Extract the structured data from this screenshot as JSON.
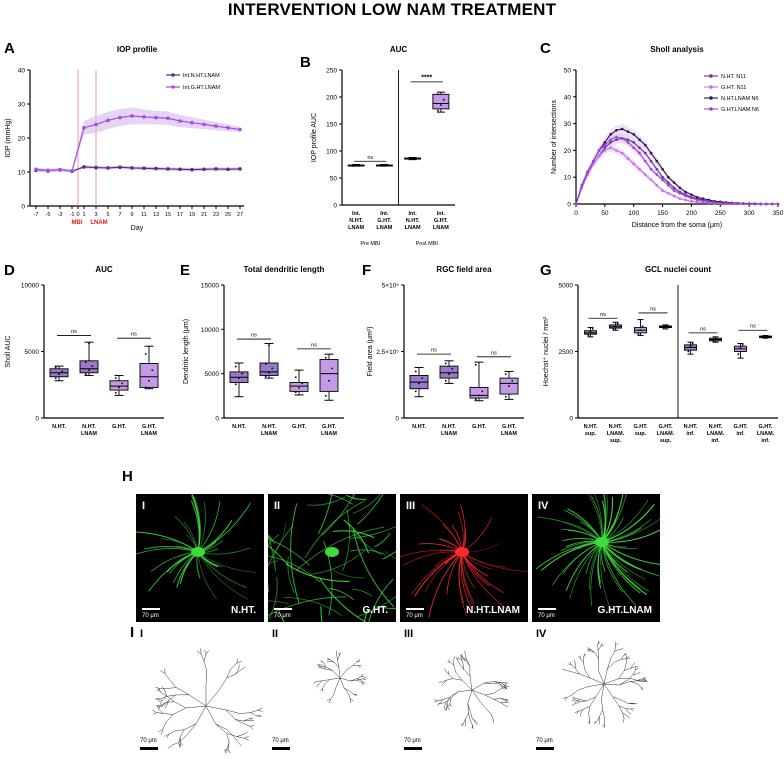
{
  "figure_title": "INTERVENTION LOW NAM TREATMENT",
  "panel_letters": {
    "A": "A",
    "B": "B",
    "C": "C",
    "D": "D",
    "E": "E",
    "F": "F",
    "G": "G",
    "H": "H",
    "I": "I"
  },
  "colors": {
    "normal": "#5b2c83",
    "glaucoma": "#a64ce0",
    "box_fill": "#c49ae6",
    "mbi_line": "#f08080",
    "band": "#d9c3ef"
  },
  "chart_data": [
    {
      "id": "A",
      "type": "line",
      "title": "IOP profile",
      "xlabel": "Day",
      "ylabel": "IOP (mmHg)",
      "ylim": [
        0,
        40
      ],
      "yticks": [
        0,
        10,
        20,
        30,
        40
      ],
      "xlim": [
        -7,
        27
      ],
      "xticks": [
        "-7",
        "-5",
        "-3",
        "-1",
        "0",
        "1",
        "3",
        "5",
        "7",
        "9",
        "11",
        "13",
        "15",
        "17",
        "19",
        "21",
        "23",
        "25",
        "27"
      ],
      "xtick_values": [
        -7,
        -5,
        -3,
        -1,
        0,
        1,
        3,
        5,
        7,
        9,
        11,
        13,
        15,
        17,
        19,
        21,
        23,
        25,
        27
      ],
      "markers": [
        {
          "x": 0,
          "label": "MBI"
        },
        {
          "x": 3,
          "label": "LNAM"
        }
      ],
      "legend_position": "top-right",
      "series": [
        {
          "name": "Int.N.HT.LNAM",
          "x": [
            -7,
            -5,
            -3,
            -1,
            1,
            3,
            5,
            7,
            9,
            11,
            13,
            15,
            17,
            19,
            21,
            23,
            25,
            27
          ],
          "y": [
            10.5,
            10.3,
            10.6,
            10.2,
            11.5,
            11.3,
            11.2,
            11.4,
            11.2,
            11.1,
            11,
            10.9,
            10.8,
            10.7,
            10.8,
            10.9,
            10.8,
            10.9
          ],
          "band": [
            0.4,
            0.4,
            0.4,
            0.4,
            0.5,
            0.5,
            0.5,
            0.5,
            0.5,
            0.5,
            0.5,
            0.5,
            0.5,
            0.5,
            0.5,
            0.5,
            0.5,
            0.5
          ]
        },
        {
          "name": "Int.G.HT.LNAM",
          "x": [
            -7,
            -5,
            -3,
            -1,
            1,
            3,
            5,
            7,
            9,
            11,
            13,
            15,
            17,
            19,
            21,
            23,
            25,
            27
          ],
          "y": [
            10.8,
            10.5,
            10.7,
            10.3,
            23,
            24,
            25.2,
            26,
            26.5,
            26.2,
            26,
            25.8,
            25,
            24.5,
            24,
            23.5,
            23,
            22.5
          ],
          "band": [
            0.5,
            0.5,
            0.5,
            0.5,
            2,
            2.5,
            2.5,
            2.5,
            2.5,
            2.2,
            2,
            2,
            1.8,
            1.6,
            1.4,
            1.2,
            1,
            0.8
          ]
        }
      ]
    },
    {
      "id": "B",
      "type": "box",
      "title": "AUC",
      "ylabel": "IOP profile AUC",
      "ylim": [
        0,
        250
      ],
      "yticks": [
        0,
        50,
        100,
        150,
        200,
        250
      ],
      "categories": [
        [
          "Int.",
          "N.HT.",
          "LNAM"
        ],
        [
          "Int.",
          "G.HT.",
          "LNAM"
        ],
        [
          "Int.",
          "N.HT.",
          "LNAM"
        ],
        [
          "Int.",
          "G.HT.",
          "LNAM"
        ]
      ],
      "group_labels": [
        "Pre MBI",
        "Post MBI"
      ],
      "boxes": [
        {
          "min": 72,
          "q1": 73,
          "median": 73.5,
          "q3": 74,
          "max": 75,
          "points": [
            72.5,
            73.5,
            74.5
          ],
          "color": "normal"
        },
        {
          "min": 72,
          "q1": 73,
          "median": 73.5,
          "q3": 74,
          "max": 75,
          "points": [
            72.8,
            73.6,
            74.2
          ],
          "color": "glaucoma"
        },
        {
          "min": 84,
          "q1": 85,
          "median": 86,
          "q3": 87,
          "max": 88,
          "points": [
            85,
            86,
            87
          ],
          "color": "normal"
        },
        {
          "min": 172,
          "q1": 178,
          "median": 188,
          "q3": 205,
          "max": 209,
          "points": [
            175,
            185,
            195,
            205
          ],
          "color": "glaucoma"
        }
      ],
      "annotations": [
        {
          "label": "ns",
          "from": 0,
          "to": 1,
          "y": 81
        },
        {
          "label": "****",
          "from": 2,
          "to": 3,
          "y": 228
        }
      ]
    },
    {
      "id": "C",
      "type": "line",
      "title": "Sholl analysis",
      "xlabel": "Distance from the soma (μm)",
      "ylabel": "Number of intersections",
      "xlim": [
        0,
        350
      ],
      "xticks": [
        0,
        50,
        100,
        150,
        200,
        250,
        300,
        350
      ],
      "ylim": [
        0,
        50
      ],
      "yticks": [
        0,
        10,
        20,
        30,
        40,
        50
      ],
      "legend_position": "top-right",
      "x": [
        0,
        10,
        20,
        30,
        40,
        50,
        60,
        70,
        80,
        90,
        100,
        110,
        120,
        130,
        140,
        150,
        160,
        170,
        180,
        190,
        200,
        210,
        220,
        230,
        240,
        250,
        260,
        270,
        280,
        290,
        300,
        310,
        320,
        330,
        340,
        350
      ],
      "series": [
        {
          "name": "N.HT. N11",
          "y": [
            0,
            6,
            11,
            15,
            18,
            21,
            23,
            24,
            24.5,
            24,
            23,
            21,
            19,
            16,
            13,
            10,
            8,
            6,
            4.5,
            3.5,
            2.5,
            2,
            1.5,
            1,
            0.8,
            0.6,
            0.4,
            0.3,
            0.2,
            0.1,
            0.1,
            0,
            0,
            0,
            0,
            0
          ],
          "color": "#6a2fa3"
        },
        {
          "name": "G.HT. N11",
          "y": [
            0,
            6,
            11,
            15,
            18,
            20,
            21,
            20,
            19,
            17,
            15,
            13,
            11,
            9,
            7,
            5,
            4,
            3,
            2,
            1.5,
            1,
            0.8,
            0.6,
            0.4,
            0.3,
            0.2,
            0.1,
            0.1,
            0,
            0,
            0,
            0,
            0,
            0,
            0,
            0
          ],
          "color": "#c86be8"
        },
        {
          "name": "N.HT.LNAM N6",
          "y": [
            0,
            7,
            12,
            16,
            20,
            23,
            26,
            27.5,
            28,
            27,
            26,
            24,
            22,
            19,
            16,
            13,
            10,
            8,
            6,
            4.5,
            3.5,
            2.5,
            2,
            1.5,
            1,
            0.8,
            0.6,
            0.4,
            0.3,
            0.2,
            0.1,
            0.1,
            0,
            0,
            0,
            0
          ],
          "color": "#2e1550"
        },
        {
          "name": "G.HT.LNAM N6",
          "y": [
            0,
            7,
            12,
            16,
            20,
            22,
            24,
            25,
            24.5,
            23,
            21,
            19,
            16,
            13,
            11,
            9,
            7,
            5,
            4,
            3,
            2.2,
            1.6,
            1.2,
            0.9,
            0.6,
            0.4,
            0.3,
            0.2,
            0.1,
            0.1,
            0,
            0,
            0,
            0,
            0,
            0
          ],
          "color": "#9b3fd6"
        }
      ]
    },
    {
      "id": "D",
      "type": "box",
      "title": "AUC",
      "ylabel": "Sholl AUC",
      "ylim": [
        0,
        10000
      ],
      "yticks": [
        0,
        5000,
        10000
      ],
      "categories": [
        [
          "N.HT."
        ],
        [
          "N.HT.",
          "LNAM"
        ],
        [
          "G.HT."
        ],
        [
          "G.HT.",
          "LNAM"
        ]
      ],
      "boxes": [
        {
          "min": 2800,
          "q1": 3100,
          "median": 3400,
          "q3": 3700,
          "max": 3900,
          "points": [
            3000,
            3300,
            3500,
            3800
          ],
          "color": "normal"
        },
        {
          "min": 3200,
          "q1": 3400,
          "median": 3700,
          "q3": 4300,
          "max": 5700,
          "points": [
            3300,
            3600,
            3900,
            4200,
            5600
          ],
          "color": "normal"
        },
        {
          "min": 1700,
          "q1": 2100,
          "median": 2400,
          "q3": 2800,
          "max": 3200,
          "points": [
            1900,
            2300,
            2600,
            3000
          ],
          "color": "glaucoma"
        },
        {
          "min": 2200,
          "q1": 2300,
          "median": 3100,
          "q3": 4100,
          "max": 5400,
          "points": [
            2300,
            2800,
            3600,
            4800
          ],
          "color": "glaucoma"
        }
      ],
      "annotations": [
        {
          "label": "ns",
          "from": 0,
          "to": 1,
          "y": 6200
        },
        {
          "label": "ns",
          "from": 2,
          "to": 3,
          "y": 6000
        }
      ]
    },
    {
      "id": "E",
      "type": "box",
      "title": "Total dendritic length",
      "ylabel": "Dendritic length (μm)",
      "ylim": [
        0,
        15000
      ],
      "yticks": [
        0,
        5000,
        10000,
        15000
      ],
      "categories": [
        [
          "N.HT."
        ],
        [
          "N.HT.",
          "LNAM"
        ],
        [
          "G.HT."
        ],
        [
          "G.HT.",
          "LNAM"
        ]
      ],
      "boxes": [
        {
          "min": 2400,
          "q1": 4000,
          "median": 4600,
          "q3": 5200,
          "max": 6200,
          "points": [
            3800,
            4500,
            5000,
            5800
          ],
          "color": "normal"
        },
        {
          "min": 4500,
          "q1": 4800,
          "median": 5200,
          "q3": 6200,
          "max": 8400,
          "points": [
            4700,
            5100,
            5600,
            6100,
            8200
          ],
          "color": "normal"
        },
        {
          "min": 2600,
          "q1": 3000,
          "median": 3600,
          "q3": 4000,
          "max": 5400,
          "points": [
            2900,
            3400,
            3900,
            4600
          ],
          "color": "glaucoma"
        },
        {
          "min": 2000,
          "q1": 3000,
          "median": 5000,
          "q3": 6600,
          "max": 7200,
          "points": [
            2500,
            4200,
            5600,
            6800
          ],
          "color": "glaucoma"
        }
      ],
      "annotations": [
        {
          "label": "ns",
          "from": 0,
          "to": 1,
          "y": 8900
        },
        {
          "label": "ns",
          "from": 2,
          "to": 3,
          "y": 7800
        }
      ]
    },
    {
      "id": "F",
      "type": "box",
      "title": "RGC field area",
      "ylabel": "Field area (μm²)",
      "ylim": [
        0,
        500000
      ],
      "yticks": [
        0,
        250000,
        500000
      ],
      "ytick_labels": [
        "0",
        "2.5×10⁵",
        "5×10⁵"
      ],
      "categories": [
        [
          "N.HT."
        ],
        [
          "N.HT.",
          "LNAM"
        ],
        [
          "G.HT."
        ],
        [
          "G.HT.",
          "LNAM"
        ]
      ],
      "boxes": [
        {
          "min": 80000,
          "q1": 110000,
          "median": 135000,
          "q3": 160000,
          "max": 190000,
          "points": [
            100000,
            130000,
            150000,
            175000
          ],
          "color": "normal"
        },
        {
          "min": 130000,
          "q1": 150000,
          "median": 170000,
          "q3": 195000,
          "max": 215000,
          "points": [
            140000,
            165000,
            185000,
            205000
          ],
          "color": "normal"
        },
        {
          "min": 65000,
          "q1": 75000,
          "median": 85000,
          "q3": 115000,
          "max": 210000,
          "points": [
            70000,
            85000,
            100000,
            200000
          ],
          "color": "glaucoma"
        },
        {
          "min": 70000,
          "q1": 90000,
          "median": 130000,
          "q3": 150000,
          "max": 175000,
          "points": [
            80000,
            120000,
            140000,
            165000
          ],
          "color": "glaucoma"
        }
      ],
      "annotations": [
        {
          "label": "ns",
          "from": 0,
          "to": 1,
          "y": 240000
        },
        {
          "label": "ns",
          "from": 2,
          "to": 3,
          "y": 230000
        }
      ]
    },
    {
      "id": "G",
      "type": "box",
      "title": "GCL nuclei count",
      "ylabel": "Hoechst⁺ nuclei / mm²",
      "ylim": [
        0,
        5000
      ],
      "yticks": [
        0,
        2500,
        5000
      ],
      "categories": [
        [
          "N.HT.",
          "sup."
        ],
        [
          "N.HT.",
          "LNAM.",
          "sup."
        ],
        [
          "G.HT.",
          "sup."
        ],
        [
          "G.HT.",
          "LNAM.",
          "sup."
        ],
        [
          "N.HT.",
          "inf."
        ],
        [
          "N.HT.",
          "LNAM.",
          "inf."
        ],
        [
          "G.HT.",
          "inf."
        ],
        [
          "G.HT.",
          "LNAM.",
          "inf."
        ]
      ],
      "boxes": [
        {
          "min": 3050,
          "q1": 3150,
          "median": 3200,
          "q3": 3280,
          "max": 3400,
          "points": [
            3100,
            3250,
            3350
          ],
          "color": "normal"
        },
        {
          "min": 3300,
          "q1": 3380,
          "median": 3430,
          "q3": 3500,
          "max": 3600,
          "points": [
            3350,
            3450,
            3550
          ],
          "color": "normal"
        },
        {
          "min": 3100,
          "q1": 3200,
          "median": 3300,
          "q3": 3400,
          "max": 3700,
          "points": [
            3150,
            3300,
            3450
          ],
          "color": "glaucoma"
        },
        {
          "min": 3350,
          "q1": 3400,
          "median": 3430,
          "q3": 3460,
          "max": 3500,
          "points": [
            3400,
            3450
          ],
          "color": "glaucoma"
        },
        {
          "min": 2400,
          "q1": 2550,
          "median": 2650,
          "q3": 2750,
          "max": 2850,
          "points": [
            2500,
            2700,
            2800
          ],
          "color": "normal"
        },
        {
          "min": 2850,
          "q1": 2900,
          "median": 2950,
          "q3": 3000,
          "max": 3050,
          "points": [
            2900,
            2980
          ],
          "color": "normal"
        },
        {
          "min": 2250,
          "q1": 2500,
          "median": 2600,
          "q3": 2700,
          "max": 2800,
          "points": [
            2400,
            2650,
            2750
          ],
          "color": "glaucoma"
        },
        {
          "min": 3000,
          "q1": 3020,
          "median": 3050,
          "q3": 3080,
          "max": 3100,
          "points": [
            3030,
            3070
          ],
          "color": "glaucoma"
        }
      ],
      "annotations": [
        {
          "label": "ns",
          "from": 0,
          "to": 1,
          "y": 3750
        },
        {
          "label": "ns",
          "from": 2,
          "to": 3,
          "y": 3950
        },
        {
          "label": "ns",
          "from": 4,
          "to": 5,
          "y": 3200
        },
        {
          "label": "ns",
          "from": 6,
          "to": 7,
          "y": 3300
        }
      ]
    }
  ],
  "micrographs": [
    {
      "roman": "I",
      "group": "N.HT.",
      "scale": "70 μm",
      "color": "green"
    },
    {
      "roman": "II",
      "group": "G.HT.",
      "scale": "70 μm",
      "color": "green"
    },
    {
      "roman": "III",
      "group": "N.HT.LNAM",
      "scale": "70 μm",
      "color": "red"
    },
    {
      "roman": "IV",
      "group": "G.HT.LNAM",
      "scale": "70 μm",
      "color": "green"
    }
  ],
  "tracings": [
    {
      "roman": "I",
      "scale": "70 μm"
    },
    {
      "roman": "II",
      "scale": "70 μm"
    },
    {
      "roman": "III",
      "scale": "70 μm"
    },
    {
      "roman": "IV",
      "scale": "70 μm"
    }
  ]
}
